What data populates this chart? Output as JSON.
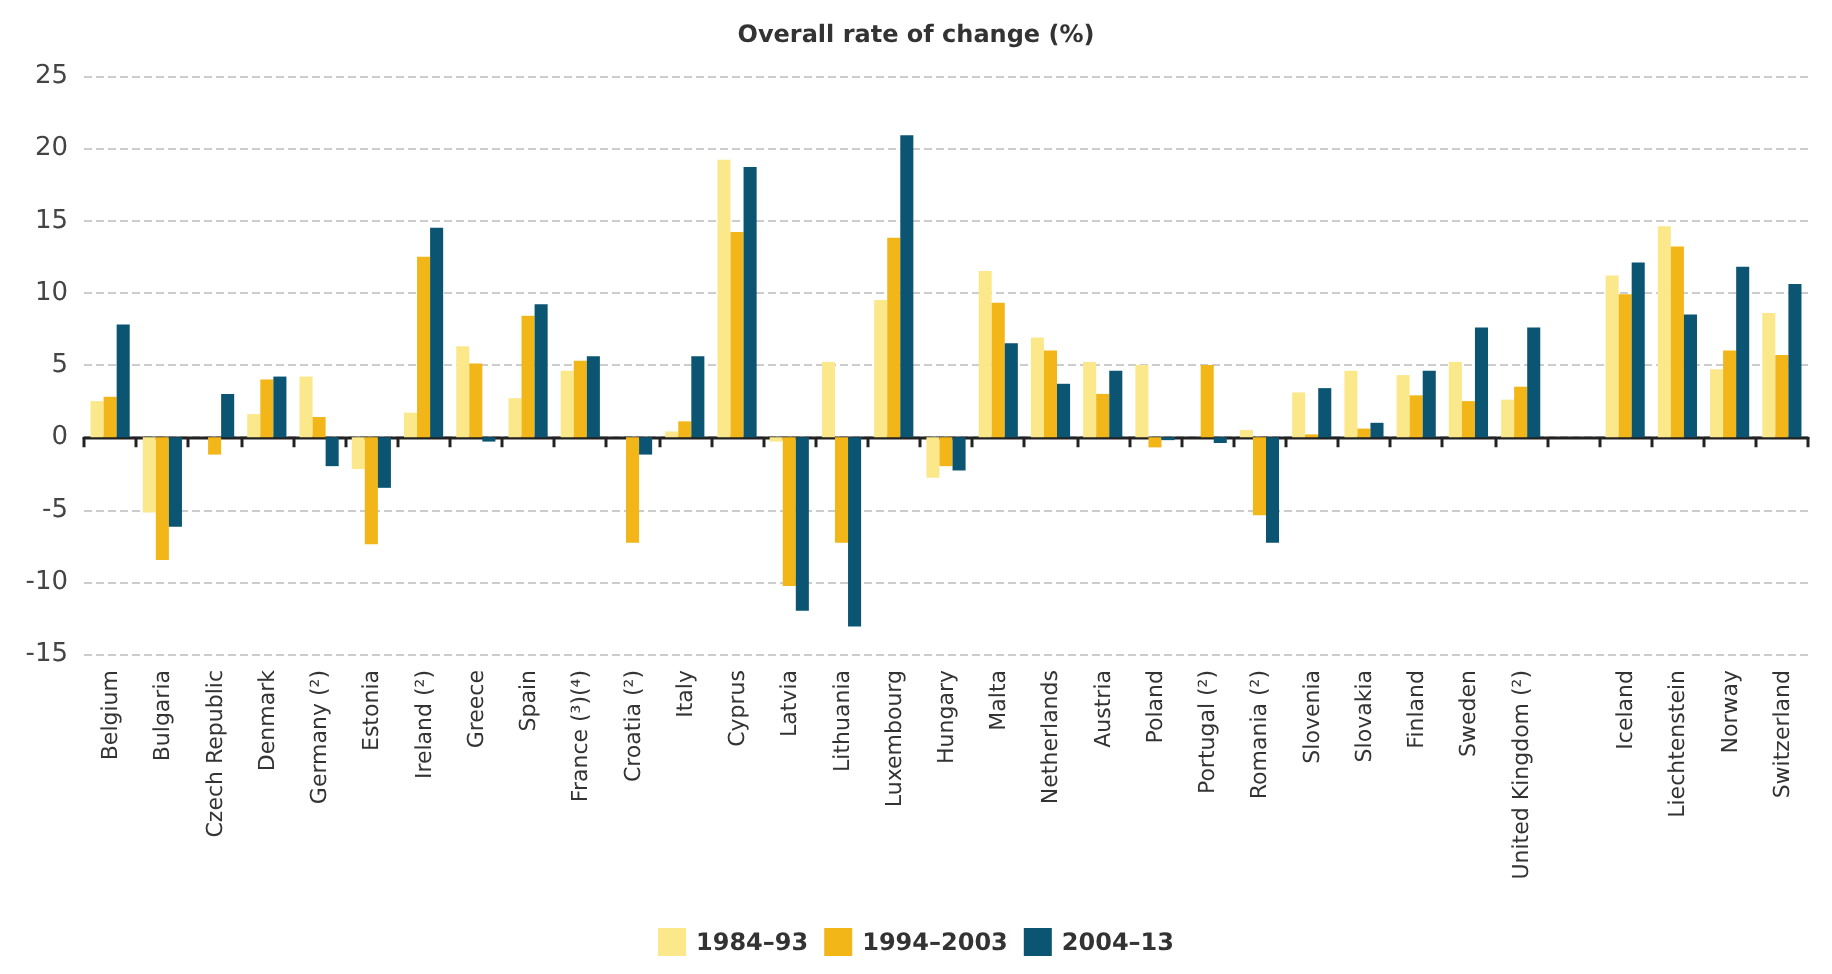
{
  "chart_data": {
    "type": "bar",
    "title": "Overall rate of change (%)",
    "categories": [
      "Belgium",
      "Bulgaria",
      "Czech Republic",
      "Denmark",
      "Germany (²)",
      "Estonia",
      "Ireland (²)",
      "Greece",
      "Spain",
      "France (³)(⁴)",
      "Croatia (²)",
      "Italy",
      "Cyprus",
      "Latvia",
      "Lithuania",
      "Luxembourg",
      "Hungary",
      "Malta",
      "Netherlands",
      "Austria",
      "Poland",
      "Portugal (²)",
      "Romania (²)",
      "Slovenia",
      "Slovakia",
      "Finland",
      "Sweden",
      "United Kingdom (²)",
      null,
      "Iceland",
      "Liechtenstein",
      "Norway",
      "Switzerland"
    ],
    "series": [
      {
        "name": "1984–93",
        "color": "#fbe88a",
        "values": [
          2.5,
          -5.2,
          null,
          1.6,
          4.2,
          -2.2,
          1.7,
          6.3,
          2.7,
          4.6,
          null,
          0.4,
          19.2,
          -0.3,
          5.2,
          9.5,
          -2.8,
          11.5,
          6.9,
          5.2,
          5.0,
          null,
          0.5,
          3.1,
          4.6,
          4.3,
          5.2,
          2.6,
          null,
          11.2,
          14.6,
          4.7,
          8.6
        ]
      },
      {
        "name": "1994–2003",
        "color": "#f2b619",
        "values": [
          2.8,
          -8.5,
          -1.2,
          4.0,
          1.4,
          -7.4,
          12.5,
          5.1,
          8.4,
          5.3,
          -7.3,
          1.1,
          14.2,
          -10.3,
          -7.3,
          13.8,
          -2.0,
          9.3,
          6.0,
          3.0,
          -0.7,
          5.0,
          -5.4,
          0.2,
          0.6,
          2.9,
          2.5,
          3.5,
          null,
          9.9,
          13.2,
          6.0,
          5.7
        ]
      },
      {
        "name": "2004–13",
        "color": "#0b5572",
        "values": [
          7.8,
          -6.2,
          3.0,
          4.2,
          -2.0,
          -3.5,
          14.5,
          -0.3,
          9.2,
          5.6,
          -1.2,
          5.6,
          18.7,
          -12.0,
          -13.1,
          20.9,
          -2.3,
          6.5,
          3.7,
          4.6,
          -0.2,
          -0.4,
          -7.3,
          3.4,
          1.0,
          4.6,
          7.6,
          7.6,
          null,
          12.1,
          8.5,
          11.8,
          10.6
        ]
      }
    ],
    "ylim": [
      -15,
      25
    ],
    "yticks": [
      -15,
      -10,
      -5,
      0,
      5,
      10,
      15,
      20,
      25
    ],
    "grid": "y",
    "legend": "bottom"
  }
}
